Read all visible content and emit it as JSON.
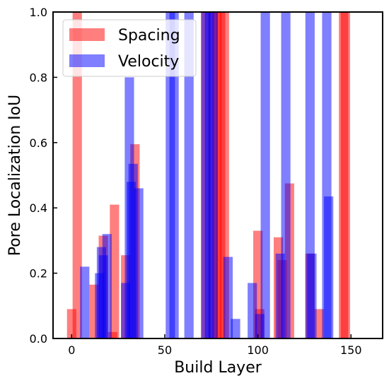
{
  "chart_data": {
    "type": "bar",
    "xlabel": "Build Layer",
    "ylabel": "Pore Localization IoU",
    "xlim": [
      -10,
      167
    ],
    "ylim": [
      0,
      1.0
    ],
    "xticks": [
      0,
      50,
      100,
      150
    ],
    "yticks": [
      0.0,
      0.2,
      0.4,
      0.6,
      0.8,
      1.0
    ],
    "xtick_labels": [
      "0",
      "50",
      "100",
      "150"
    ],
    "ytick_labels": [
      "0.0",
      "0.2",
      "0.4",
      "0.6",
      "0.8",
      "1.0"
    ],
    "legend_position": "top-left",
    "grid": false,
    "series": [
      {
        "name": "Spacing",
        "color": "#ff0000",
        "opacity": 0.5,
        "bar_width": 5,
        "x": [
          0,
          3,
          12,
          17,
          22,
          23,
          29,
          34,
          72,
          76,
          78,
          80,
          82,
          100,
          101,
          111,
          113,
          117,
          128,
          133,
          146,
          147
        ],
        "values": [
          0.09,
          1.0,
          0.165,
          0.315,
          0.02,
          0.41,
          0.255,
          0.595,
          1.0,
          1.0,
          1.0,
          1.0,
          1.0,
          0.33,
          0.09,
          0.31,
          0.24,
          0.475,
          0.26,
          0.09,
          1.0,
          1.0
        ]
      },
      {
        "name": "Velocity",
        "color": "#0000ff",
        "opacity": 0.5,
        "bar_width": 5,
        "x": [
          7,
          15,
          16,
          17,
          19,
          29,
          31,
          32,
          33,
          36,
          53,
          55,
          63,
          72,
          74,
          76,
          84,
          88,
          97,
          101,
          104,
          112,
          115,
          128,
          129,
          137,
          138
        ],
        "values": [
          0.22,
          0.2,
          0.28,
          0.255,
          0.32,
          0.17,
          0.8,
          0.48,
          0.535,
          0.46,
          1.0,
          1.0,
          1.0,
          1.0,
          1.0,
          1.0,
          0.25,
          0.06,
          0.17,
          0.075,
          1.0,
          0.26,
          1.0,
          1.0,
          0.26,
          1.0,
          0.435
        ]
      }
    ]
  }
}
